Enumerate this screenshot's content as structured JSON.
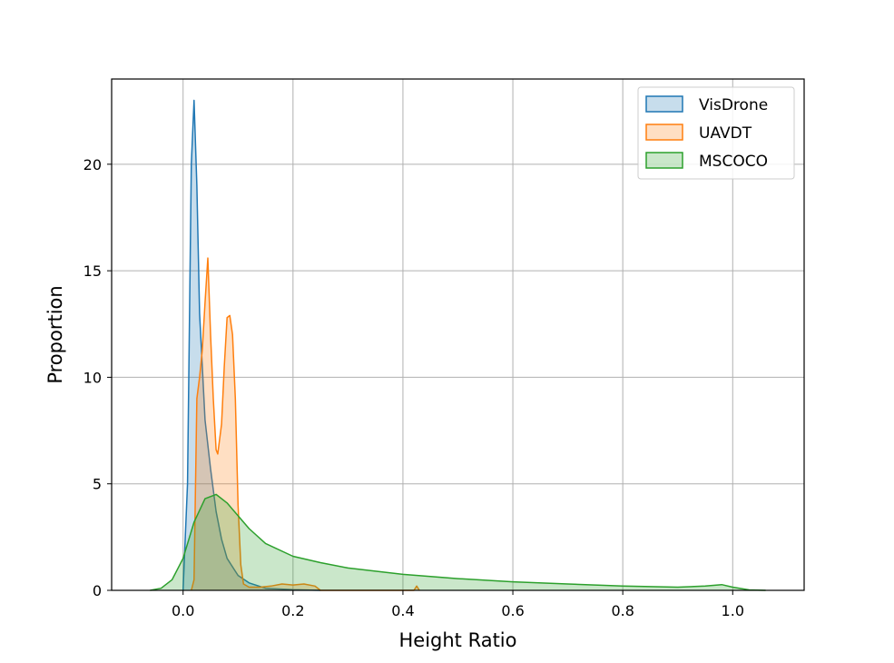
{
  "chart_data": {
    "type": "area",
    "title": "",
    "xlabel": "Height Ratio",
    "ylabel": "Proportion",
    "xlim": [
      -0.13,
      1.13
    ],
    "ylim": [
      0,
      24
    ],
    "xticks": [
      0.0,
      0.2,
      0.4,
      0.6,
      0.8,
      1.0
    ],
    "xtick_labels": [
      "0.0",
      "0.2",
      "0.4",
      "0.6",
      "0.8",
      "1.0"
    ],
    "yticks": [
      0,
      5,
      10,
      15,
      20
    ],
    "ytick_labels": [
      "0",
      "5",
      "10",
      "15",
      "20"
    ],
    "grid": true,
    "legend_position": "top-right",
    "series": [
      {
        "name": "VisDrone",
        "color": "#1f77b4",
        "x": [
          0.0,
          0.008,
          0.015,
          0.02,
          0.025,
          0.03,
          0.04,
          0.05,
          0.06,
          0.07,
          0.08,
          0.1,
          0.12,
          0.15,
          0.2,
          0.25
        ],
        "y": [
          0.0,
          5,
          20,
          23,
          19,
          13,
          8,
          5.7,
          3.7,
          2.4,
          1.5,
          0.7,
          0.35,
          0.1,
          0.03,
          0.0
        ]
      },
      {
        "name": "UAVDT",
        "color": "#ff7f0e",
        "x": [
          0.015,
          0.02,
          0.025,
          0.03,
          0.035,
          0.04,
          0.045,
          0.05,
          0.055,
          0.06,
          0.063,
          0.07,
          0.075,
          0.08,
          0.085,
          0.09,
          0.095,
          0.1,
          0.105,
          0.11,
          0.12,
          0.14,
          0.16,
          0.18,
          0.2,
          0.22,
          0.24,
          0.25,
          0.42,
          0.425,
          0.43
        ],
        "y": [
          0.0,
          0.5,
          9,
          10,
          11.3,
          13.5,
          15.6,
          12,
          9,
          6.6,
          6.4,
          7.8,
          10.5,
          12.8,
          12.9,
          12,
          9,
          4,
          1.2,
          0.3,
          0.15,
          0.15,
          0.2,
          0.3,
          0.25,
          0.3,
          0.2,
          0.0,
          0.0,
          0.2,
          0.0
        ]
      },
      {
        "name": "MSCOCO",
        "color": "#2ca02c",
        "x": [
          -0.06,
          -0.04,
          -0.02,
          0.0,
          0.02,
          0.04,
          0.06,
          0.08,
          0.1,
          0.12,
          0.15,
          0.2,
          0.25,
          0.3,
          0.4,
          0.5,
          0.6,
          0.7,
          0.8,
          0.9,
          0.95,
          0.98,
          1.0,
          1.03,
          1.06
        ],
        "y": [
          0.0,
          0.1,
          0.5,
          1.5,
          3.2,
          4.3,
          4.5,
          4.1,
          3.5,
          2.9,
          2.2,
          1.6,
          1.3,
          1.05,
          0.75,
          0.55,
          0.4,
          0.3,
          0.2,
          0.15,
          0.2,
          0.27,
          0.15,
          0.02,
          0.0
        ]
      }
    ]
  }
}
